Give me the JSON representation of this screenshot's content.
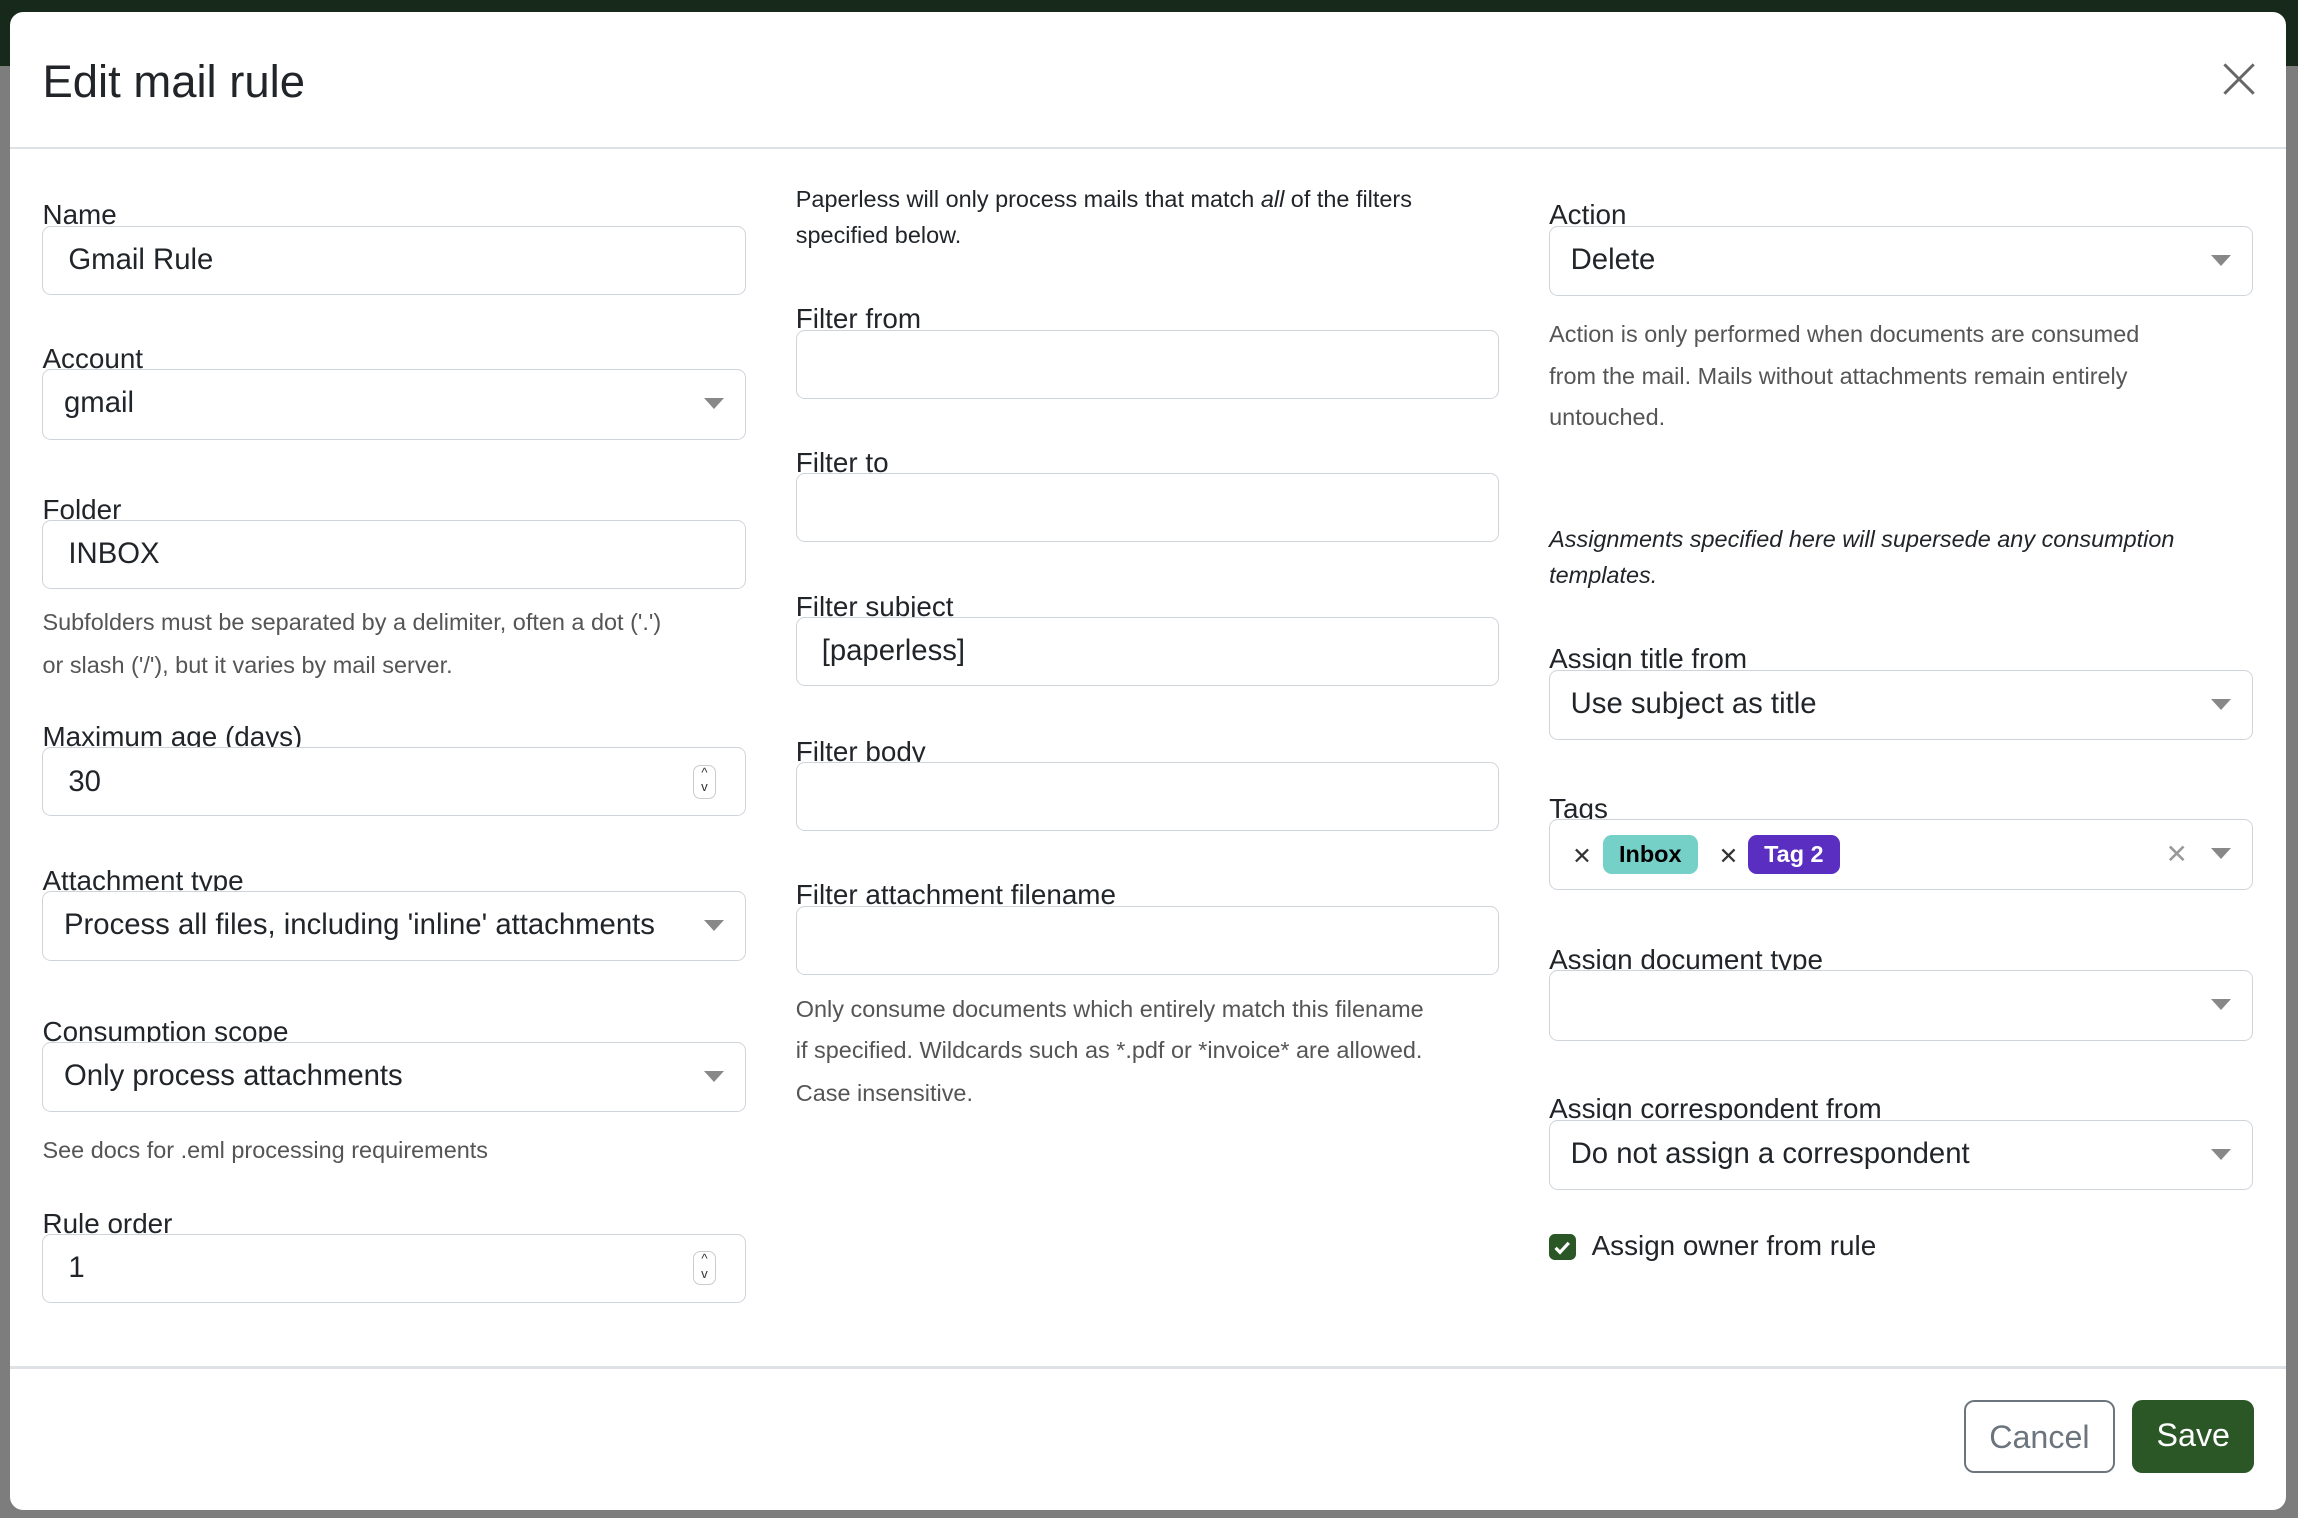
{
  "modal": {
    "title": "Edit mail rule",
    "close_icon": "close-icon",
    "cancel_label": "Cancel",
    "save_label": "Save"
  },
  "colors": {
    "accent": "#2b5727",
    "inbox_tag": "#75d0c8",
    "tag2": "#5a2ec1"
  },
  "left": {
    "name": {
      "label": "Name",
      "value": "Gmail Rule"
    },
    "account": {
      "label": "Account",
      "value": "gmail"
    },
    "folder": {
      "label": "Folder",
      "value": "INBOX",
      "help1": "Subfolders must be separated by a delimiter, often a dot ('.')",
      "help2": "or slash ('/'), but it varies by mail server."
    },
    "max_age": {
      "label": "Maximum age (days)",
      "value": "30"
    },
    "attachment_type": {
      "label": "Attachment type",
      "value": "Process all files, including 'inline' attachments"
    },
    "consumption_scope": {
      "label": "Consumption scope",
      "value": "Only process attachments",
      "help": "See docs for .eml processing requirements"
    },
    "rule_order": {
      "label": "Rule order",
      "value": "1"
    }
  },
  "middle": {
    "intro_pre": "Paperless will only process mails that match ",
    "intro_em": "all",
    "intro_post": " of the filters",
    "intro_line2": "specified below.",
    "filter_from": {
      "label": "Filter from",
      "value": ""
    },
    "filter_to": {
      "label": "Filter to",
      "value": ""
    },
    "filter_subject": {
      "label": "Filter subject",
      "value": "[paperless]"
    },
    "filter_body": {
      "label": "Filter body",
      "value": ""
    },
    "filter_attachment": {
      "label": "Filter attachment filename",
      "value": "",
      "help1": "Only consume documents which entirely match this filename",
      "help2": "if specified. Wildcards such as *.pdf or *invoice* are allowed.",
      "help3": "Case insensitive."
    }
  },
  "right": {
    "action": {
      "label": "Action",
      "value": "Delete",
      "help1": "Action is only performed when documents are consumed",
      "help2": "from the mail. Mails without attachments remain entirely",
      "help3": "untouched."
    },
    "assign_note1": "Assignments specified here will supersede any consumption",
    "assign_note2": "templates.",
    "assign_title": {
      "label": "Assign title from",
      "value": "Use subject as title"
    },
    "tags": {
      "label": "Tags",
      "items": [
        {
          "label": "Inbox"
        },
        {
          "label": "Tag 2"
        }
      ]
    },
    "doc_type": {
      "label": "Assign document type",
      "value": ""
    },
    "correspondent": {
      "label": "Assign correspondent from",
      "value": "Do not assign a correspondent"
    },
    "owner": {
      "label": "Assign owner from rule",
      "checked": true
    }
  }
}
